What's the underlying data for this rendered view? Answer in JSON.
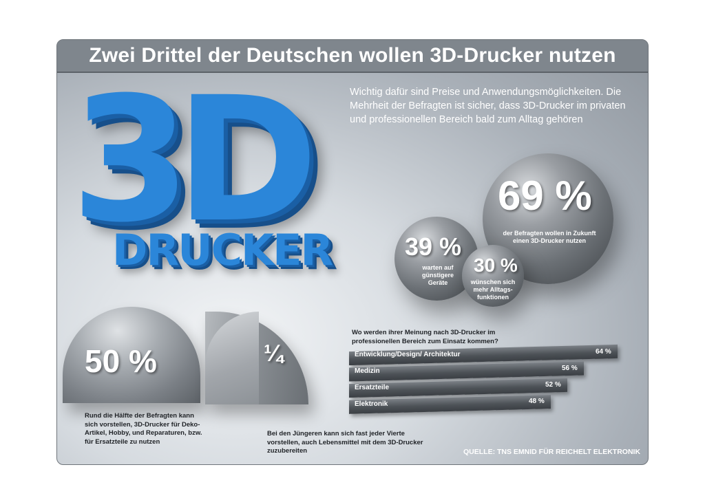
{
  "title": "Zwei Drittel der Deutschen wollen 3D-Drucker nutzen",
  "intro": "Wichtig dafür sind Preise und Anwendungsmöglichkeiten. Die Mehrheit der Befragten ist sicher, dass 3D-Drucker im privaten und professionellen Bereich bald zum Alltag gehören",
  "logo": {
    "big": "3D",
    "word": "DRUCKER"
  },
  "stats": {
    "s69": {
      "value": "69 %",
      "label": "der Befragten wollen in Zukunft einen 3D-Drucker nutzen"
    },
    "s39": {
      "value": "39 %",
      "label": "warten auf günstigere Geräte"
    },
    "s30": {
      "value": "30 %",
      "label": "wünschen sich mehr Alltags-funktionen"
    },
    "s50": {
      "value": "50 %",
      "label": "Rund die Hälfte der Befragten kann sich vorstellen, 3D-Drucker für Deko-Artikel, Hobby, und Reparaturen, bzw. für Ersatzteile zu nutzen"
    },
    "quarter": {
      "value": "¼",
      "label": "Bei den Jüngeren kann sich fast jeder Vierte vorstellen, auch Lebensmittel mit dem 3D-Drucker zuzubereiten"
    }
  },
  "source": "QUELLE: TNS EMNID FÜR REICHELT ELEKTRONIK",
  "chart_data": {
    "type": "bar",
    "title": "Wo werden ihrer Meinung nach 3D-Drucker im professionellen Bereich zum Einsatz kommen?",
    "categories": [
      "Entwicklung/Design/ Architektur",
      "Medizin",
      "Ersatzteile",
      "Elektronik"
    ],
    "values": [
      64,
      56,
      52,
      48
    ],
    "value_labels": [
      "64 %",
      "56 %",
      "52 %",
      "48 %"
    ],
    "unit": "%",
    "orientation": "horizontal",
    "xlim": [
      0,
      64
    ],
    "grid": false,
    "legend": "none",
    "bar_color": "#4d5257"
  }
}
